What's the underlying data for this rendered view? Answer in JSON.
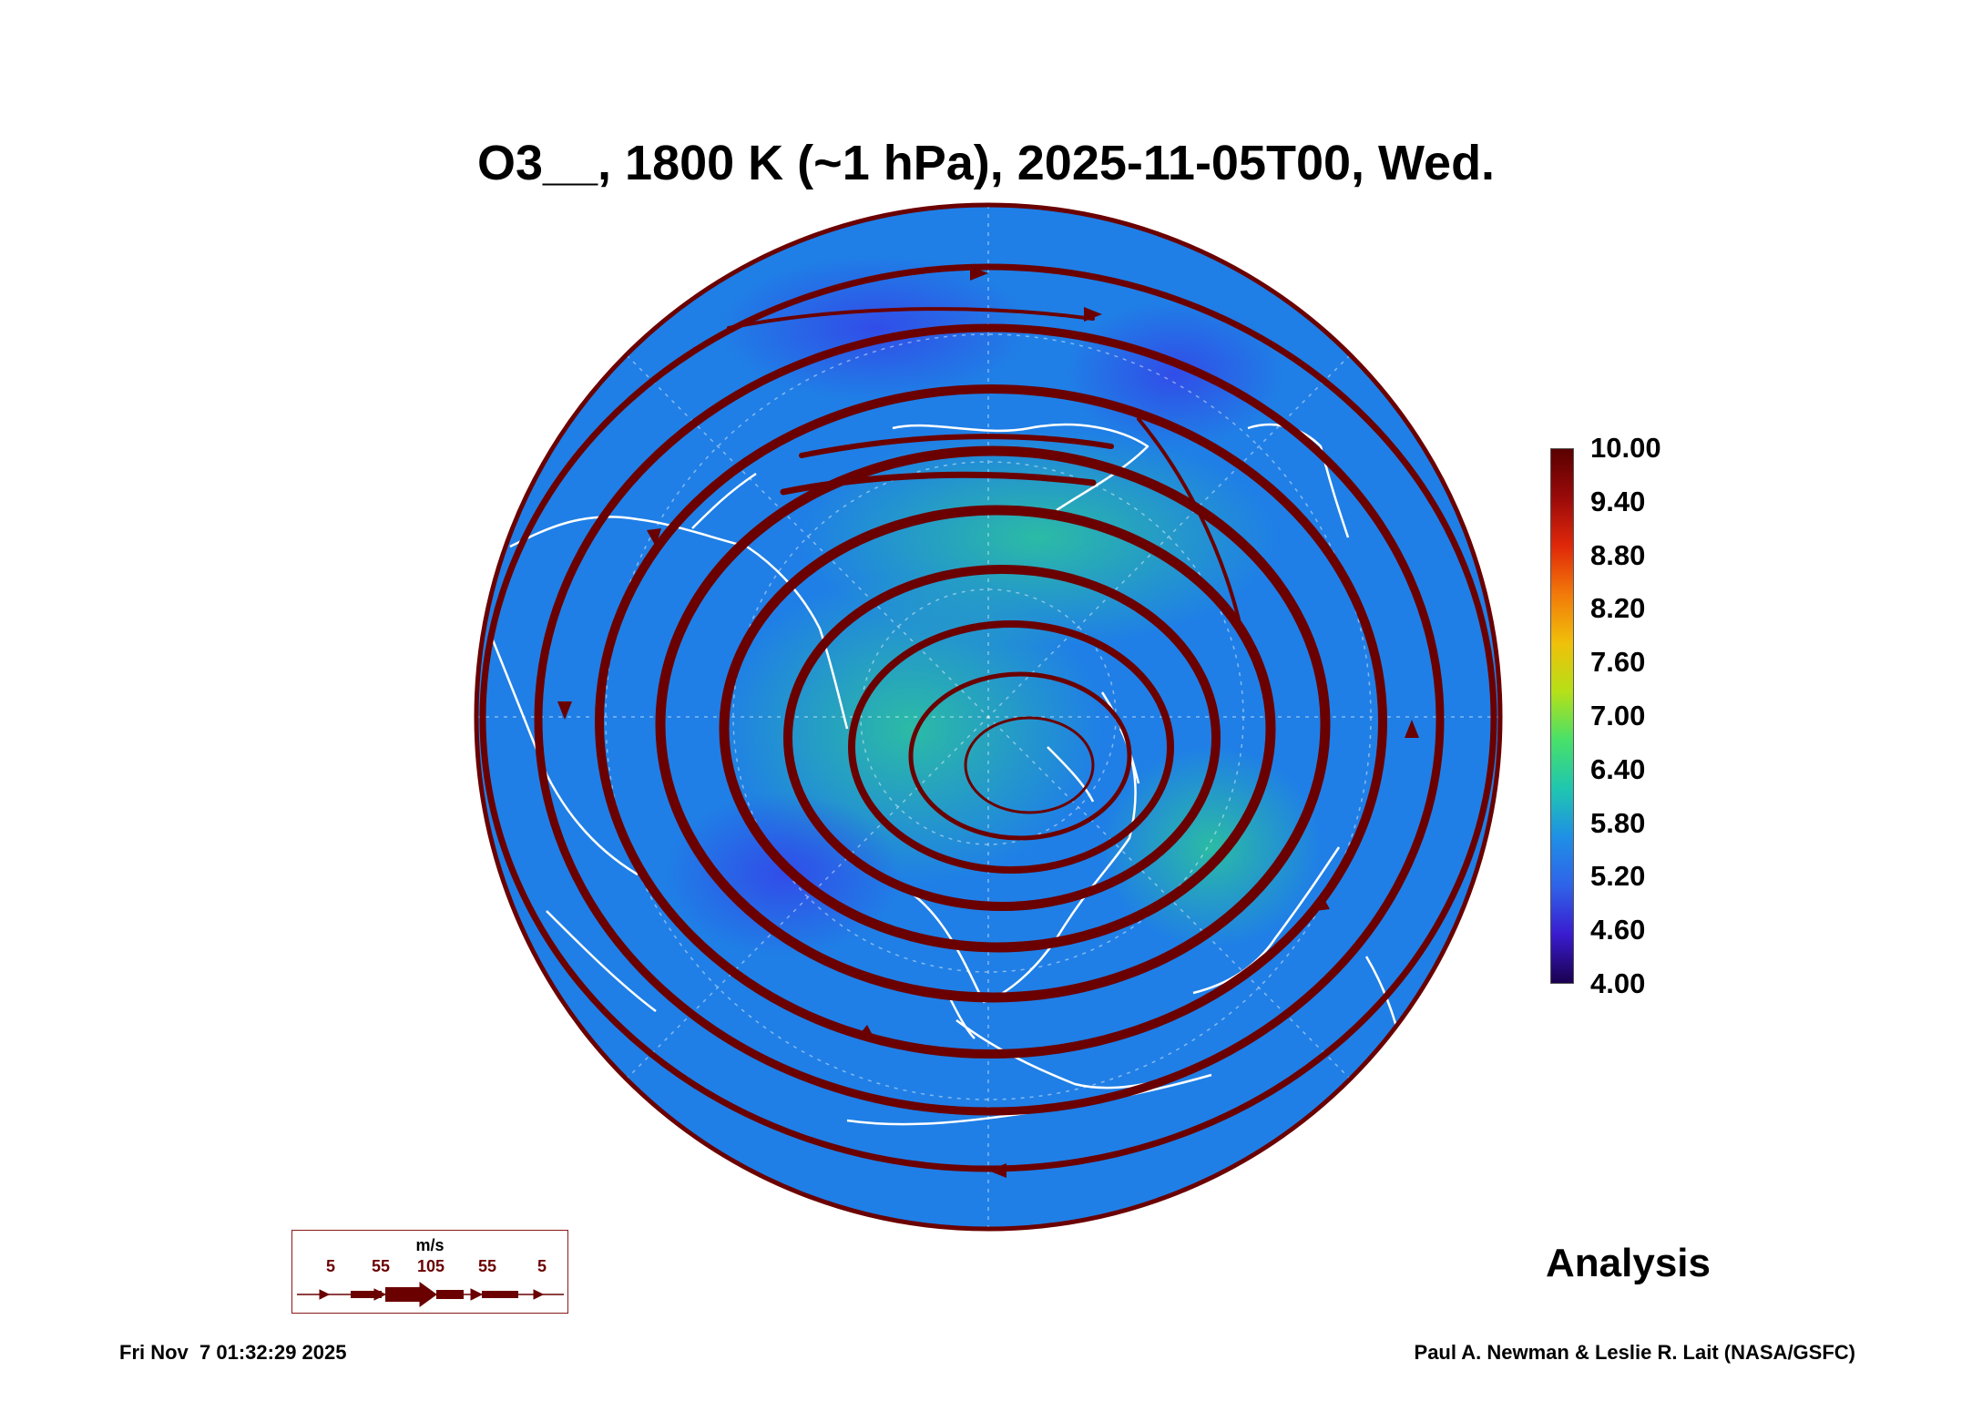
{
  "title": "O3__, 1800 K (~1 hPa), 2025-11-05T00, Wed.",
  "colorbar": {
    "labels": [
      "10.00",
      "9.40",
      "8.80",
      "8.20",
      "7.60",
      "7.00",
      "6.40",
      "5.80",
      "5.20",
      "4.60",
      "4.00"
    ],
    "colors": [
      "#1a0050",
      "#3a1ccf",
      "#2f63e8",
      "#1f8fe6",
      "#20c6b0",
      "#48e06a",
      "#b5e018",
      "#f0c00a",
      "#f27a0a",
      "#e0280a",
      "#9a0a0a",
      "#5a0000"
    ]
  },
  "colors": {
    "ocean_base": "#1f7fe6",
    "low_ozone": "#3347e8",
    "high_ozone": "#2fcf8f",
    "streamline": "#6b0000",
    "coastline": "#ffffff"
  },
  "analysis_label": "Analysis",
  "wind_legend": {
    "unit": "m/s",
    "speeds": [
      "5",
      "55",
      "105",
      "55",
      "5"
    ]
  },
  "timestamp": "Fri Nov  7 01:32:29 2025",
  "credits": "Paul A. Newman & Leslie R. Lait (NASA/GSFC)"
}
